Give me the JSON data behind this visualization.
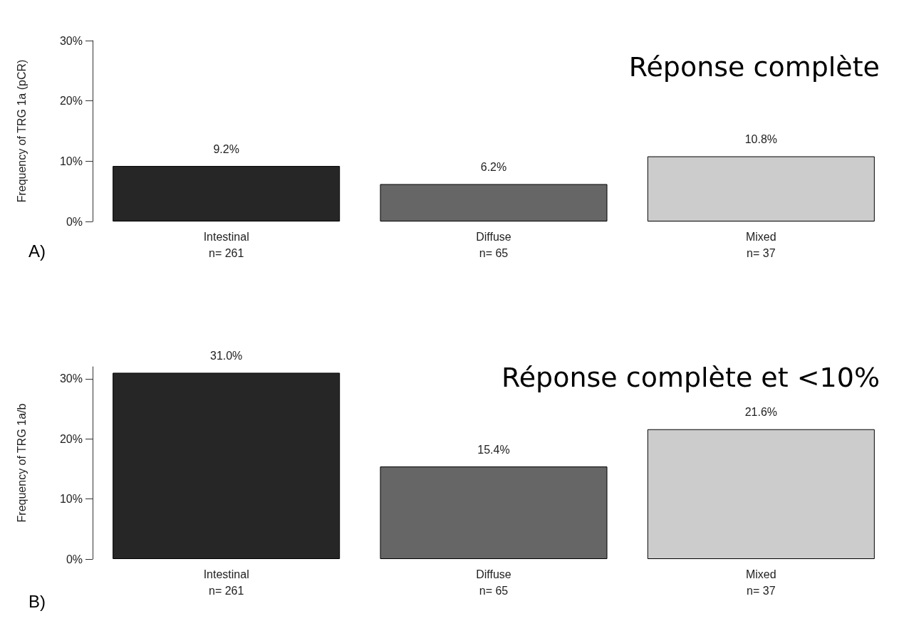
{
  "chart_data": [
    {
      "type": "bar",
      "title": "Réponse complète",
      "ylabel": "Frequency of TRG 1a (pCR)",
      "categories": [
        "Intestinal\nn= 261",
        "Diffuse\nn= 65",
        "Mixed\nn= 37"
      ],
      "values": [
        9.2,
        6.2,
        10.8
      ],
      "colors": [
        "#262626",
        "#666666",
        "#cccccc"
      ],
      "value_labels": [
        "9.2%",
        "6.2%",
        "10.8%"
      ],
      "ylim": [
        0,
        30
      ],
      "yticks": [
        {
          "value": 0,
          "label": "0%"
        },
        {
          "value": 10,
          "label": "10%"
        },
        {
          "value": 20,
          "label": "20%"
        },
        {
          "value": 30,
          "label": "30%"
        }
      ],
      "annotations": [
        "A)"
      ],
      "grid": false
    },
    {
      "type": "bar",
      "title": "Réponse complète et <10%",
      "ylabel": "Frequency of TRG 1a/b",
      "categories": [
        "Intestinal\nn= 261",
        "Diffuse\nn= 65",
        "Mixed\nn= 37"
      ],
      "values": [
        31.0,
        15.4,
        21.6
      ],
      "colors": [
        "#262626",
        "#666666",
        "#cccccc"
      ],
      "value_labels": [
        "31.0%",
        "15.4%",
        "21.6%"
      ],
      "ylim": [
        0,
        32
      ],
      "yticks": [
        {
          "value": 0,
          "label": "0%"
        },
        {
          "value": 10,
          "label": "10%"
        },
        {
          "value": 20,
          "label": "20%"
        },
        {
          "value": 30,
          "label": "30%"
        }
      ],
      "annotations": [
        "B)"
      ],
      "grid": false
    }
  ]
}
